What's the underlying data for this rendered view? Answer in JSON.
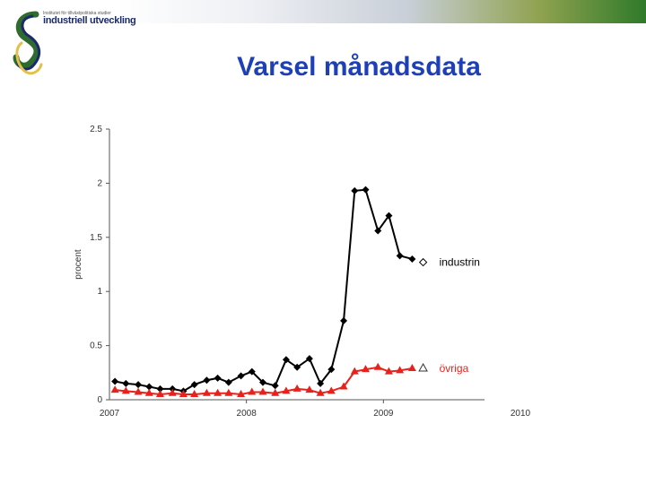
{
  "header": {
    "title": "Varsel månadsdata",
    "logo_small_text": "Institutet för tillväxtpolitiska studier",
    "logo_text": "industriell utveckling"
  },
  "colors": {
    "title": "#1d3fb8",
    "industrin": "#000000",
    "ovriga": "#e8211c"
  },
  "chart_data": {
    "type": "line",
    "title": "",
    "xlabel": "",
    "ylabel": "procent",
    "xlim": [
      2007,
      2010
    ],
    "ylim": [
      0,
      2.5
    ],
    "x_ticks": [
      "2007",
      "2008",
      "2009",
      "2010"
    ],
    "y_ticks": [
      "0",
      "0.5",
      "1",
      "1.5",
      "2",
      "2.5"
    ],
    "grid": false,
    "legend": "inline-right",
    "series": [
      {
        "name": "industrin",
        "marker": "diamond",
        "color": "#000000",
        "x": [
          2007.04,
          2007.12,
          2007.21,
          2007.29,
          2007.37,
          2007.46,
          2007.54,
          2007.62,
          2007.71,
          2007.79,
          2007.87,
          2007.96,
          2008.04,
          2008.12,
          2008.21,
          2008.29,
          2008.37,
          2008.46,
          2008.54,
          2008.62,
          2008.71,
          2008.79,
          2008.87,
          2008.96,
          2009.04,
          2009.12,
          2009.21,
          2009.29
        ],
        "y": [
          0.17,
          0.15,
          0.14,
          0.12,
          0.1,
          0.1,
          0.08,
          0.14,
          0.18,
          0.2,
          0.16,
          0.22,
          0.26,
          0.16,
          0.13,
          0.37,
          0.3,
          0.38,
          0.15,
          0.28,
          0.73,
          1.93,
          1.94,
          1.56,
          1.7,
          1.33,
          1.3,
          1.27
        ]
      },
      {
        "name": "övriga",
        "marker": "triangle",
        "color": "#e8211c",
        "x": [
          2007.04,
          2007.12,
          2007.21,
          2007.29,
          2007.37,
          2007.46,
          2007.54,
          2007.62,
          2007.71,
          2007.79,
          2007.87,
          2007.96,
          2008.04,
          2008.12,
          2008.21,
          2008.29,
          2008.37,
          2008.46,
          2008.54,
          2008.62,
          2008.71,
          2008.79,
          2008.87,
          2008.96,
          2009.04,
          2009.12,
          2009.21,
          2009.29
        ],
        "y": [
          0.09,
          0.08,
          0.07,
          0.06,
          0.05,
          0.06,
          0.05,
          0.05,
          0.06,
          0.06,
          0.06,
          0.05,
          0.07,
          0.07,
          0.06,
          0.08,
          0.1,
          0.09,
          0.06,
          0.08,
          0.12,
          0.26,
          0.28,
          0.3,
          0.26,
          0.27,
          0.29,
          0.29
        ]
      }
    ]
  }
}
